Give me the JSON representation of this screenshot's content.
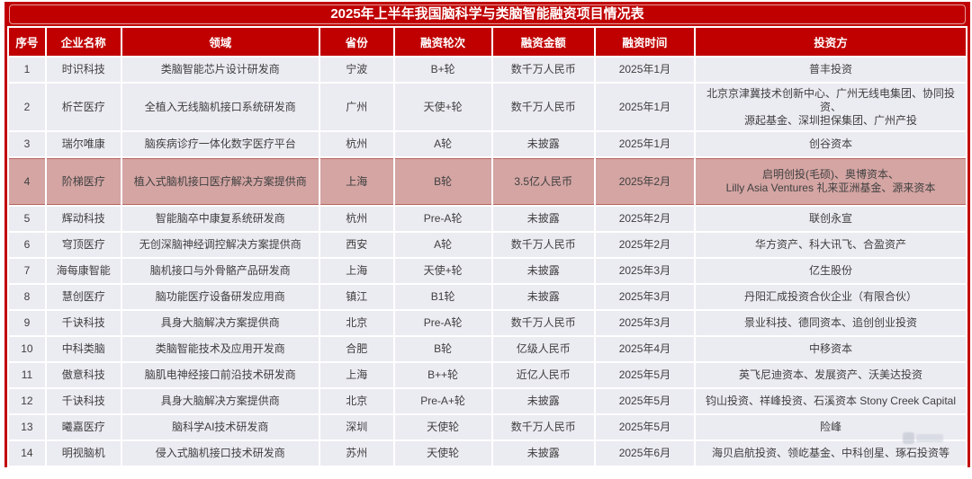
{
  "chart_data": {
    "type": "table",
    "title": "2025年上半年我国脑科学与类脑智能融资项目情况表",
    "highlighted_row": 4,
    "columns": [
      {
        "key": "no",
        "label": "序号"
      },
      {
        "key": "company",
        "label": "企业名称"
      },
      {
        "key": "field",
        "label": "领域"
      },
      {
        "key": "province",
        "label": "省份"
      },
      {
        "key": "round",
        "label": "融资轮次"
      },
      {
        "key": "amount",
        "label": "融资金额"
      },
      {
        "key": "date",
        "label": "融资时间"
      },
      {
        "key": "investors",
        "label": "投资方"
      }
    ],
    "rows": [
      [
        "1",
        "时识科技",
        "类脑智能芯片设计研发商",
        "宁波",
        "B+轮",
        "数千万人民币",
        "2025年1月",
        "普丰投资"
      ],
      [
        "2",
        "析芒医疗",
        "全植入无线脑机接口系统研发商",
        "广州",
        "天使+轮",
        "数千万人民币",
        "2025年1月",
        "北京京津冀技术创新中心、广州无线电集团、协同投资、\n源起基金、深圳担保集团、广州产投"
      ],
      [
        "3",
        "瑞尔唯康",
        "脑疾病诊疗一体化数字医疗平台",
        "杭州",
        "A轮",
        "未披露",
        "2025年1月",
        "创谷资本"
      ],
      [
        "4",
        "阶梯医疗",
        "植入式脑机接口医疗解决方案提供商",
        "上海",
        "B轮",
        "3.5亿人民币",
        "2025年2月",
        "启明创投(毛硕)、奥博资本、\nLilly Asia Ventures 礼来亚洲基金、源来资本"
      ],
      [
        "5",
        "辉动科技",
        "智能脑卒中康复系统研发商",
        "杭州",
        "Pre-A轮",
        "未披露",
        "2025年2月",
        "联创永宣"
      ],
      [
        "6",
        "穹顶医疗",
        "无创深脑神经调控解决方案提供商",
        "西安",
        "A轮",
        "数千万人民币",
        "2025年2月",
        "华方资产、科大讯飞、合盈资产"
      ],
      [
        "7",
        "海每康智能",
        "脑机接口与外骨骼产品研发商",
        "上海",
        "天使+轮",
        "未披露",
        "2025年3月",
        "亿生股份"
      ],
      [
        "8",
        "慧创医疗",
        "脑功能医疗设备研发应用商",
        "镇江",
        "B1轮",
        "未披露",
        "2025年3月",
        "丹阳汇成投资合伙企业（有限合伙）"
      ],
      [
        "9",
        "千诀科技",
        "具身大脑解决方案提供商",
        "北京",
        "Pre-A轮",
        "数千万人民币",
        "2025年3月",
        "景业科技、德同资本、追创创业投资"
      ],
      [
        "10",
        "中科类脑",
        "类脑智能技术及应用开发商",
        "合肥",
        "B轮",
        "亿级人民币",
        "2025年4月",
        "中移资本"
      ],
      [
        "11",
        "傲意科技",
        "脑肌电神经接口前沿技术研发商",
        "上海",
        "B++轮",
        "近亿人民币",
        "2025年5月",
        "英飞尼迪资本、发展资产、沃美达投资"
      ],
      [
        "12",
        "千诀科技",
        "具身大脑解决方案提供商",
        "北京",
        "Pre-A+轮",
        "未披露",
        "2025年5月",
        "钧山投资、祥峰投资、石溪资本 Stony Creek Capital"
      ],
      [
        "13",
        "曦嘉医疗",
        "脑科学AI技术研发商",
        "深圳",
        "天使轮",
        "数千万人民币",
        "2025年5月",
        "险峰"
      ],
      [
        "14",
        "明视脑机",
        "侵入式脑机接口技术研发商",
        "苏州",
        "天使轮",
        "未披露",
        "2025年6月",
        "海贝启航投资、领屹基金、中科创星、琢石投资等"
      ]
    ],
    "colors": {
      "header_red": "#c00000",
      "cell_bg": "#ebebf2",
      "highlight_bg": "#d4a5a3",
      "header_text": "#ffffff",
      "body_text": "#404040"
    }
  }
}
